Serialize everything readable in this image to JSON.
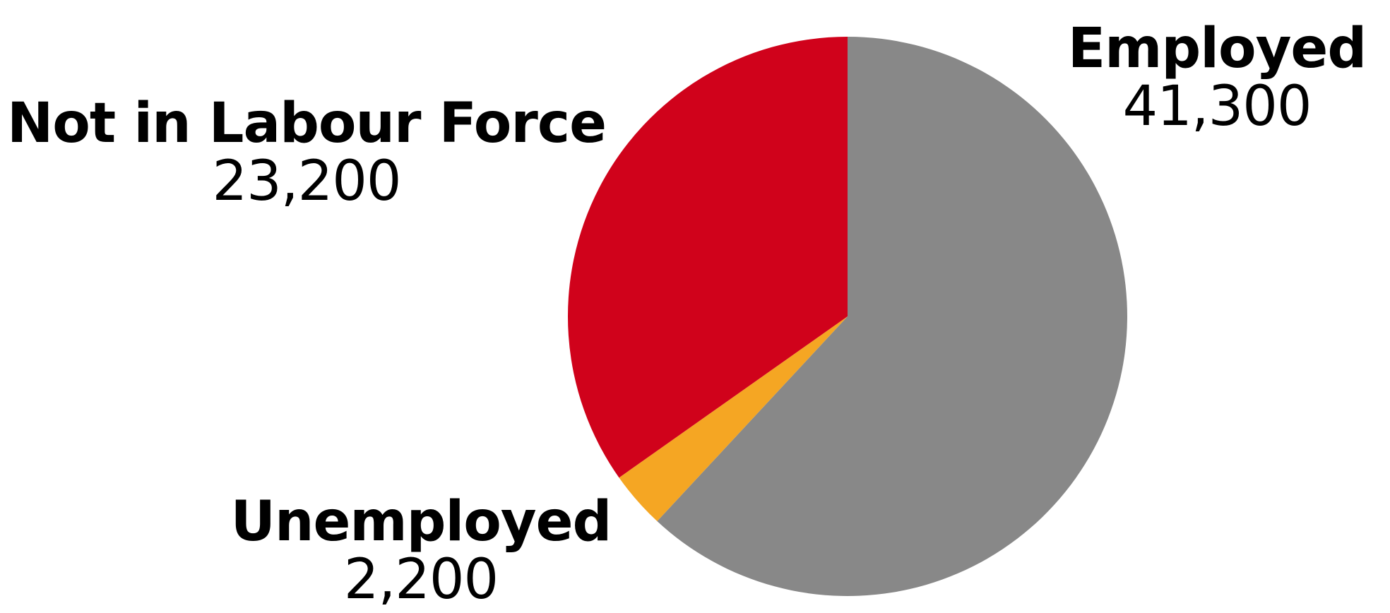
{
  "chart_data": {
    "type": "pie",
    "title": "",
    "start_angle_deg": 0,
    "direction": "clockwise",
    "slices": [
      {
        "name": "Employed",
        "value": 41300,
        "value_label": "41,300",
        "color": "#888888"
      },
      {
        "name": "Unemployed",
        "value": 2200,
        "value_label": "2,200",
        "color": "#F5A623"
      },
      {
        "name": "Not in Labour Force",
        "value": 23200,
        "value_label": "23,200",
        "color": "#D0021B"
      }
    ]
  }
}
